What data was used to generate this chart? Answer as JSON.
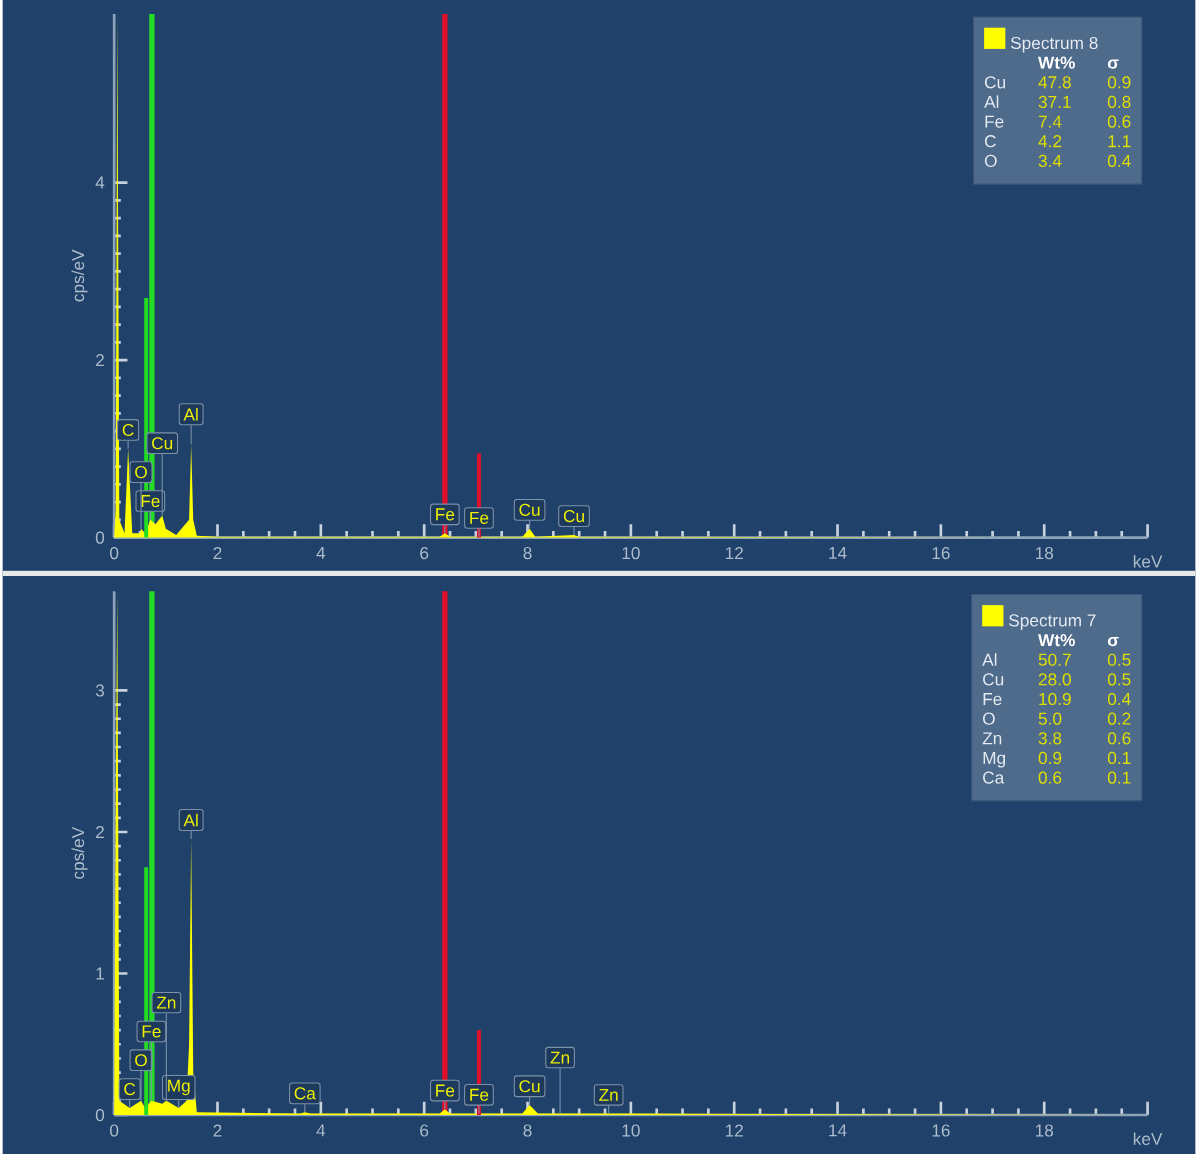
{
  "chart_data": [
    {
      "type": "area",
      "xlabel": "keV",
      "ylabel": "cps/eV",
      "xlim": [
        0,
        20
      ],
      "ylim": [
        0,
        5.9
      ],
      "xticks": [
        0,
        2,
        4,
        6,
        8,
        10,
        12,
        14,
        16,
        18,
        {
          "value": 20,
          "label": null
        }
      ],
      "yticks": [
        0,
        2,
        4
      ],
      "legend": "top right",
      "series": [
        {
          "name": "Spectrum 8",
          "color": "#ffff00",
          "x": [
            0,
            0.03,
            0.06,
            0.1,
            0.2,
            0.27,
            0.35,
            0.5,
            0.52,
            0.6,
            0.7,
            0.8,
            0.93,
            1.0,
            1.2,
            1.45,
            1.49,
            1.53,
            1.6,
            2,
            6.3,
            6.4,
            6.5,
            7.06,
            7.5,
            7.9,
            8.04,
            8.15,
            8.9,
            9,
            20
          ],
          "values": [
            0,
            0.3,
            5.9,
            0.2,
            0.05,
            1.0,
            0.05,
            0.05,
            0.1,
            0.05,
            0.2,
            0.15,
            0.25,
            0.1,
            0.03,
            0.2,
            1.05,
            0.2,
            0.02,
            0.01,
            0.01,
            0.05,
            0.01,
            0.01,
            0.01,
            0.01,
            0.1,
            0.01,
            0.03,
            0.01,
            0
          ]
        },
        {
          "type": "line",
          "color": "#22dd22",
          "x": [
            0.62,
            0.62
          ],
          "values": [
            0,
            2.7
          ]
        },
        {
          "type": "line",
          "color": "#e0102a",
          "x": [
            7.06,
            7.06
          ],
          "values": [
            0,
            0.95
          ]
        }
      ],
      "ref_lines": [
        {
          "axis": "x",
          "value": 0.73,
          "color": "#22dd22"
        },
        {
          "axis": "x",
          "value": 6.4,
          "color": "#e0102a"
        }
      ],
      "annotations": [
        "Wt%",
        "σ",
        "Cu",
        "47.8",
        "0.9",
        "Al",
        "37.1",
        "0.8",
        "Fe",
        "7.4",
        "0.6",
        "C",
        "4.2",
        "1.1",
        "O",
        "3.4",
        "0.4",
        {
          "text": "Fe",
          "x": 0.7,
          "y": 0.2
        },
        {
          "text": "O",
          "x": 0.52,
          "y": 0.1
        },
        {
          "text": "C",
          "x": 0.27,
          "y": 1.0
        },
        {
          "text": "Cu",
          "x": 0.93,
          "y": 0.25
        },
        {
          "text": "Al",
          "x": 1.49,
          "y": 1.05
        },
        {
          "text": "Fe",
          "x": 6.4,
          "y": 0.05
        },
        {
          "text": "Fe",
          "x": 7.06,
          "y": 0.01
        },
        {
          "text": "Cu",
          "x": 8.04,
          "y": 0.1
        },
        {
          "text": "Cu",
          "x": 8.9,
          "y": 0.03
        }
      ]
    },
    {
      "type": "area",
      "xlabel": "keV",
      "ylabel": "cps/eV",
      "xlim": [
        0,
        20
      ],
      "ylim": [
        0,
        3.7
      ],
      "xticks": [
        0,
        2,
        4,
        6,
        8,
        10,
        12,
        14,
        16,
        18,
        {
          "value": 20,
          "label": null
        }
      ],
      "yticks": [
        0,
        1,
        2,
        3
      ],
      "legend": "top right",
      "series": [
        {
          "name": "Spectrum 7",
          "color": "#ffff00",
          "x": [
            0,
            0.03,
            0.06,
            0.1,
            0.3,
            0.52,
            0.6,
            0.72,
            0.93,
            1.01,
            1.25,
            1.4,
            1.45,
            1.49,
            1.53,
            1.6,
            3.6,
            3.69,
            3.8,
            6.3,
            6.4,
            6.5,
            7.06,
            7.5,
            7.9,
            8.04,
            8.2,
            8.63,
            9.0,
            9.57,
            10,
            20
          ],
          "values": [
            0,
            2.2,
            3.7,
            0.1,
            0.05,
            0.1,
            0.05,
            0.1,
            0.08,
            0.1,
            0.05,
            0.1,
            0.5,
            1.95,
            0.3,
            0.02,
            0.01,
            0.02,
            0.01,
            0.01,
            0.04,
            0.01,
            0.01,
            0.01,
            0.01,
            0.07,
            0.01,
            0.01,
            0.01,
            0.01,
            0.01,
            0
          ]
        },
        {
          "type": "line",
          "color": "#22dd22",
          "x": [
            0.62,
            0.62
          ],
          "values": [
            0,
            1.75
          ]
        },
        {
          "type": "line",
          "color": "#e0102a",
          "x": [
            7.06,
            7.06
          ],
          "values": [
            0,
            0.6
          ]
        }
      ],
      "ref_lines": [
        {
          "axis": "x",
          "value": 0.73,
          "color": "#22dd22"
        },
        {
          "axis": "x",
          "value": 6.4,
          "color": "#e0102a"
        }
      ],
      "annotations": [
        "Wt%",
        "σ",
        "Al",
        "50.7",
        "0.5",
        "Cu",
        "28.0",
        "0.5",
        "Fe",
        "10.9",
        "0.4",
        "O",
        "5.0",
        "0.2",
        "Zn",
        "3.8",
        "0.6",
        "Mg",
        "0.9",
        "0.1",
        "Ca",
        "0.6",
        "0.1",
        {
          "text": "C",
          "x": 0.3,
          "y": 0.05
        },
        {
          "text": "Mg",
          "x": 1.25,
          "y": 0.05
        },
        {
          "text": "O",
          "x": 0.52,
          "y": 0.1
        },
        {
          "text": "Fe",
          "x": 0.72,
          "y": 0.1
        },
        {
          "text": "Zn",
          "x": 1.01,
          "y": 0.1
        },
        {
          "text": "Al",
          "x": 1.49,
          "y": 1.95
        },
        {
          "text": "Ca",
          "x": 3.69,
          "y": 0.02
        },
        {
          "text": "Fe",
          "x": 6.4,
          "y": 0.04
        },
        {
          "text": "Fe",
          "x": 7.06,
          "y": 0.01
        },
        {
          "text": "Cu",
          "x": 8.04,
          "y": 0.07
        },
        {
          "text": "Zn",
          "x": 8.63,
          "y": 0.01
        },
        {
          "text": "Zn",
          "x": 9.57,
          "y": 0.01
        }
      ]
    }
  ]
}
